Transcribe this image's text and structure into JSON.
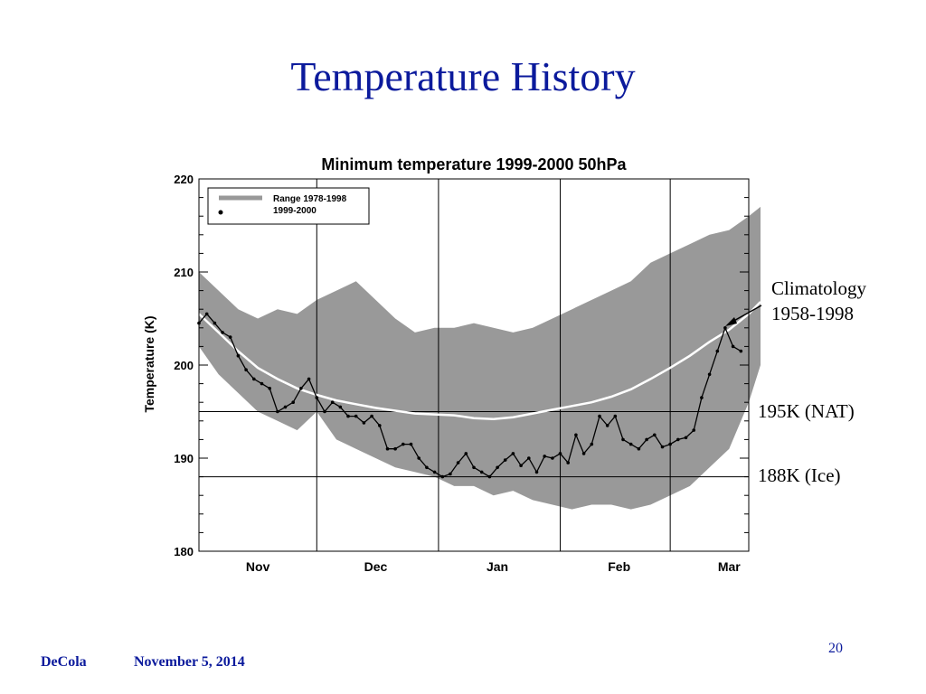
{
  "slide": {
    "title": "Temperature History",
    "footer_author": "DeCola",
    "footer_date": "November 5, 2014",
    "page_number": "20"
  },
  "annotations": {
    "climatology_line1": "Climatology",
    "climatology_line2": "1958-1998",
    "nat_label": "195K (NAT)",
    "ice_label": "188K (Ice)"
  },
  "colors": {
    "title": "#0b1a9c",
    "range_fill": "#999999",
    "climatology_line": "#ffffff",
    "series_line": "#000000"
  },
  "chart_data": {
    "type": "area",
    "title": "Minimum temperature 1999-2000 50hPa",
    "xlabel": "",
    "ylabel": "Temperature (K)",
    "ylim": [
      180,
      220
    ],
    "yticks": [
      180,
      190,
      200,
      210,
      220
    ],
    "xlim": [
      0,
      140
    ],
    "month_labels": [
      {
        "label": "Nov",
        "x": 15
      },
      {
        "label": "Dec",
        "x": 45
      },
      {
        "label": "Jan",
        "x": 76
      },
      {
        "label": "Feb",
        "x": 107
      },
      {
        "label": "Mar",
        "x": 135
      }
    ],
    "month_boundaries": [
      0,
      30,
      61,
      92,
      120
    ],
    "grid": false,
    "legend": {
      "placement": "top-left",
      "entries": [
        "Range 1978-1998",
        "1999-2000"
      ]
    },
    "threshold_lines": [
      195,
      188
    ],
    "series": [
      {
        "name": "Range 1978-1998",
        "kind": "band",
        "x": [
          0,
          5,
          10,
          15,
          20,
          25,
          30,
          35,
          40,
          45,
          50,
          55,
          60,
          65,
          70,
          75,
          80,
          85,
          90,
          95,
          100,
          105,
          110,
          115,
          120,
          125,
          130,
          135,
          140,
          143
        ],
        "low": [
          202,
          199,
          197,
          195,
          194,
          193,
          195,
          192,
          191,
          190,
          189,
          188.5,
          188,
          187,
          187,
          186,
          186.5,
          185.5,
          185,
          184.5,
          185,
          185,
          184.5,
          185,
          186,
          187,
          189,
          191,
          196,
          200
        ],
        "high": [
          210,
          208,
          206,
          205,
          206,
          205.5,
          207,
          208,
          209,
          207,
          205,
          203.5,
          204,
          204,
          204.5,
          204,
          203.5,
          204,
          205,
          206,
          207,
          208,
          209,
          211,
          212,
          213,
          214,
          214.5,
          216,
          217
        ]
      },
      {
        "name": "Climatology 1958-1998",
        "kind": "line",
        "x": [
          0,
          5,
          10,
          15,
          20,
          25,
          30,
          35,
          40,
          45,
          50,
          55,
          60,
          65,
          70,
          75,
          80,
          85,
          90,
          95,
          100,
          105,
          110,
          115,
          120,
          125,
          130,
          135,
          140,
          143
        ],
        "y": [
          205.5,
          203.5,
          201.5,
          199.7,
          198.5,
          197.5,
          196.8,
          196.2,
          195.8,
          195.4,
          195.1,
          194.8,
          194.7,
          194.6,
          194.3,
          194.2,
          194.4,
          194.8,
          195.2,
          195.6,
          196,
          196.6,
          197.4,
          198.5,
          199.7,
          201,
          202.5,
          203.8,
          205.5,
          206.8
        ]
      },
      {
        "name": "1999-2000",
        "kind": "line",
        "x": [
          0,
          2,
          4,
          6,
          8,
          10,
          12,
          14,
          16,
          18,
          20,
          22,
          24,
          26,
          28,
          30,
          32,
          34,
          36,
          38,
          40,
          42,
          44,
          46,
          48,
          50,
          52,
          54,
          56,
          58,
          60,
          62,
          64,
          66,
          68,
          70,
          72,
          74,
          76,
          78,
          80,
          82,
          84,
          86,
          88,
          90,
          92,
          94,
          96,
          98,
          100,
          102,
          104,
          106,
          108,
          110,
          112,
          114,
          116,
          118,
          120,
          122,
          124,
          126,
          128,
          130,
          132,
          134,
          136,
          138
        ],
        "y": [
          204.5,
          205.5,
          204.5,
          203.5,
          203,
          201,
          199.5,
          198.5,
          198,
          197.5,
          195,
          195.5,
          196,
          197.5,
          198.5,
          196.5,
          195,
          196,
          195.5,
          194.5,
          194.5,
          193.8,
          194.5,
          193.5,
          191,
          191,
          191.5,
          191.5,
          190,
          189,
          188.5,
          188,
          188.3,
          189.5,
          190.5,
          189,
          188.5,
          188,
          189,
          189.8,
          190.5,
          189.2,
          190,
          188.5,
          190.2,
          190,
          190.5,
          189.5,
          192.5,
          190.5,
          191.5,
          194.5,
          193.5,
          194.5,
          192,
          191.5,
          191,
          192,
          192.5,
          191.2,
          191.5,
          192,
          192.2,
          193,
          196.5,
          199,
          201.5,
          204,
          202,
          201.5
        ]
      }
    ]
  }
}
